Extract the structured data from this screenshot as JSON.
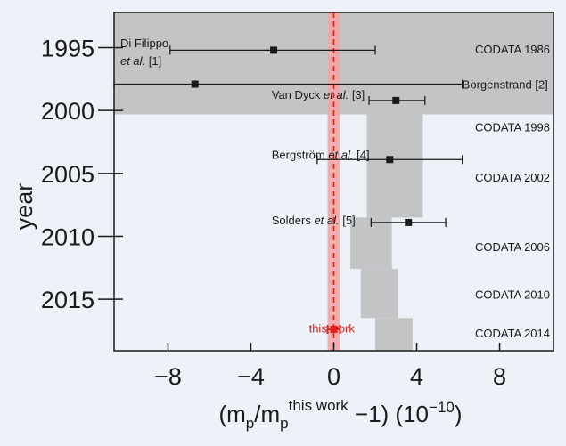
{
  "chart_data": {
    "type": "scatter",
    "xlabel_parts": {
      "prefix": "(m",
      "sub1": "p",
      "mid": "/m",
      "sub2": "p",
      "sup2": "this work",
      "suffix": " −1) (10",
      "exp": "−10",
      "close": ")"
    },
    "ylabel": "year",
    "xlim": [
      -10.6,
      10.6
    ],
    "ylim": [
      1992.2,
      2019.1
    ],
    "y_reversed": true,
    "x_ticks": [
      {
        "value": -8,
        "label": "−8"
      },
      {
        "value": -4,
        "label": "−4"
      },
      {
        "value": 0,
        "label": "0"
      },
      {
        "value": 4,
        "label": "4"
      },
      {
        "value": 8,
        "label": "8"
      }
    ],
    "y_ticks": [
      {
        "value": 1995,
        "label": "1995"
      },
      {
        "value": 2000,
        "label": "2000"
      },
      {
        "value": 2005,
        "label": "2005"
      },
      {
        "value": 2010,
        "label": "2010"
      },
      {
        "value": 2015,
        "label": "2015"
      }
    ],
    "measurements": [
      {
        "name_plain": "Di Filippo",
        "name_italic": "",
        "line2_italic": "et al.",
        "line2_plain": " [1]",
        "label_x": -10.3,
        "label_y": 1994.6,
        "value": -2.9,
        "err_low": -7.9,
        "err_high": 2.0,
        "year": 1995.2,
        "color": "#1a1a1a"
      },
      {
        "name_plain": "Borgenstrand [2]",
        "name_italic": "",
        "value": -6.7,
        "err_low": -10.6,
        "err_high": 6.2,
        "year": 1997.9,
        "label_x": 6.2,
        "label_y": 1997.9,
        "color": "#1a1a1a"
      },
      {
        "name_plain": "Van Dyck ",
        "name_italic": "et al.",
        "name_suffix": " [3]",
        "value": 3.0,
        "err_low": 1.7,
        "err_high": 4.4,
        "year": 1999.2,
        "label_x": -3.0,
        "label_y": 1998.7,
        "color": "#1a1a1a"
      },
      {
        "name_plain": "Bergström ",
        "name_italic": "et al.",
        "name_suffix": " [4]",
        "value": 2.7,
        "err_low": -0.8,
        "err_high": 6.2,
        "year": 2003.9,
        "label_x": -3.0,
        "label_y": 2003.5,
        "color": "#1a1a1a"
      },
      {
        "name_plain": "Solders ",
        "name_italic": "et al.",
        "name_suffix": " [5]",
        "value": 3.6,
        "err_low": 1.8,
        "err_high": 5.4,
        "year": 2008.9,
        "label_x": -3.0,
        "label_y": 2008.7,
        "color": "#1a1a1a"
      },
      {
        "name_plain": "this work",
        "name_italic": "",
        "value": 0.0,
        "err_low": -0.3,
        "err_high": 0.3,
        "year": 2017.4,
        "label_x": -1.2,
        "label_y": 2017.3,
        "color": "#e0231e"
      }
    ],
    "codata": [
      {
        "label": "CODATA 1986",
        "year_start": 1992.2,
        "year_end": 2000.3,
        "x_low": -10.6,
        "x_high": 10.6,
        "label_y": 1995.1
      },
      {
        "label": "CODATA 1998",
        "year_start": 2000.3,
        "year_end": 2008.5,
        "x_low": 1.6,
        "x_high": 4.3,
        "label_y": 2001.3
      },
      {
        "label": "CODATA 2002",
        "year_start": 2000.3,
        "year_end": 2008.5,
        "x_low": 1.6,
        "x_high": 4.3,
        "label_y": 2005.3
      },
      {
        "label": "CODATA 2006",
        "year_start": 2008.5,
        "year_end": 2012.6,
        "x_low": 0.8,
        "x_high": 2.8,
        "label_y": 2010.8
      },
      {
        "label": "CODATA 2010",
        "year_start": 2012.6,
        "year_end": 2016.5,
        "x_low": 1.3,
        "x_high": 3.1,
        "label_y": 2014.6
      },
      {
        "label": "CODATA 2014",
        "year_start": 2016.5,
        "year_end": 2019.1,
        "x_low": 2.0,
        "x_high": 3.8,
        "label_y": 2017.7
      }
    ],
    "this_work_band": {
      "x_low": -0.3,
      "x_high": 0.3,
      "color": "#f4a3a3",
      "line_color": "#e0231e"
    },
    "grid": false,
    "colors": {
      "background": "#ecf2f8",
      "band": "#c3c4c6",
      "text": "#1a1a1a",
      "highlight": "#e0231e"
    }
  }
}
